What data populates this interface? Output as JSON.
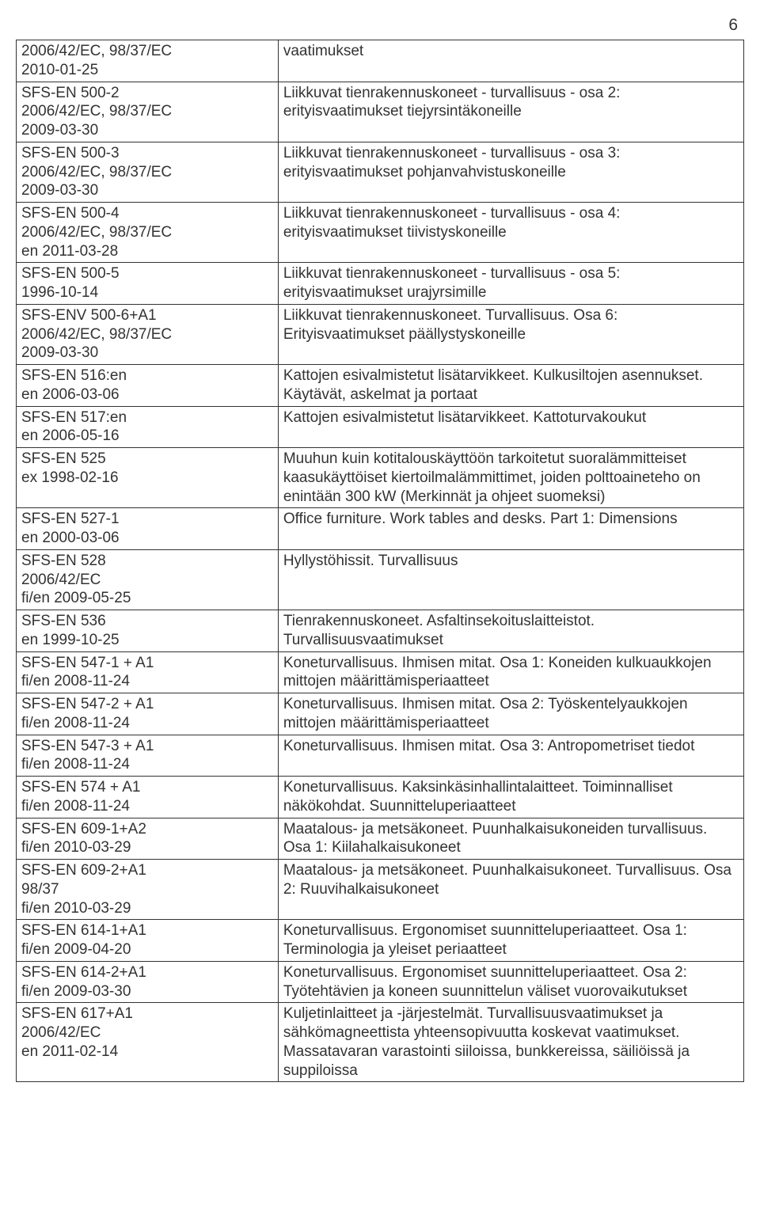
{
  "page_number": "6",
  "font_family": "Arial",
  "text_color": "#333333",
  "border_color": "#333333",
  "background_color": "#ffffff",
  "col_widths_pct": [
    36,
    64
  ],
  "rows": [
    {
      "left": "2006/42/EC, 98/37/EC\n2010-01-25",
      "right": "vaatimukset"
    },
    {
      "left": "SFS-EN 500-2\n2006/42/EC, 98/37/EC\n2009-03-30",
      "right": "Liikkuvat tienrakennuskoneet - turvallisuus - osa 2: erityisvaatimukset tiejyrsintäkoneille"
    },
    {
      "left": "SFS-EN 500-3\n2006/42/EC, 98/37/EC\n2009-03-30",
      "right": "Liikkuvat tienrakennuskoneet - turvallisuus - osa 3: erityisvaatimukset pohjanvahvistuskoneille"
    },
    {
      "left": "SFS-EN 500-4\n2006/42/EC, 98/37/EC\nen 2011-03-28",
      "right": "Liikkuvat tienrakennuskoneet - turvallisuus - osa 4: erityisvaatimukset tiivistyskoneille"
    },
    {
      "left": "SFS-EN 500-5\n1996-10-14",
      "right": "Liikkuvat tienrakennuskoneet - turvallisuus - osa 5: erityisvaatimukset urajyrsimille"
    },
    {
      "left": "SFS-ENV 500-6+A1\n2006/42/EC, 98/37/EC\n2009-03-30",
      "right": "Liikkuvat tienrakennuskoneet. Turvallisuus. Osa 6: Erityisvaatimukset päällystyskoneille"
    },
    {
      "left": "SFS-EN 516:en\nen 2006-03-06",
      "right": "Kattojen esivalmistetut lisätarvikkeet. Kulkusiltojen asennukset. Käytävät, askelmat ja portaat"
    },
    {
      "left": "SFS-EN 517:en\nen 2006-05-16",
      "right": "Kattojen esivalmistetut lisätarvikkeet. Kattoturvakoukut"
    },
    {
      "left": "SFS-EN 525\nex 1998-02-16",
      "right": "Muuhun kuin kotitalouskäyttöön tarkoitetut suoralämmitteiset kaasukäyttöiset kiertoilmalämmittimet, joiden polttoaineteho on enintään 300 kW (Merkinnät ja ohjeet suomeksi)"
    },
    {
      "left": "SFS-EN 527-1\nen 2000-03-06",
      "right": "Office furniture. Work tables and desks. Part 1: Dimensions"
    },
    {
      "left": "SFS-EN 528\n2006/42/EC\nfi/en 2009-05-25",
      "right": "Hyllystöhissit. Turvallisuus"
    },
    {
      "left": "SFS-EN 536\nen 1999-10-25",
      "right": "Tienrakennuskoneet. Asfaltinsekoituslaitteistot. Turvallisuusvaatimukset"
    },
    {
      "left": "SFS-EN 547-1 + A1\nfi/en 2008-11-24",
      "right": "Koneturvallisuus. Ihmisen mitat. Osa 1: Koneiden kulkuaukkojen mittojen määrittämisperiaatteet"
    },
    {
      "left": "SFS-EN 547-2 + A1\nfi/en 2008-11-24",
      "right": "Koneturvallisuus. Ihmisen mitat. Osa 2: Työskentelyaukkojen mittojen määrittämisperiaatteet"
    },
    {
      "left": "SFS-EN 547-3 + A1\nfi/en 2008-11-24",
      "right": "Koneturvallisuus. Ihmisen mitat. Osa 3: Antropometriset tiedot"
    },
    {
      "left": "SFS-EN 574 + A1\nfi/en 2008-11-24",
      "right": "Koneturvallisuus. Kaksinkäsinhallintalaitteet. Toiminnalliset näkökohdat. Suunnitteluperiaatteet"
    },
    {
      "left": "SFS-EN 609-1+A2\n fi/en 2010-03-29",
      "right": "Maatalous- ja metsäkoneet. Puunhalkaisukoneiden turvallisuus. Osa 1: Kiilahalkaisukoneet"
    },
    {
      "left": "SFS-EN 609-2+A1\n98/37\n fi/en 2010-03-29",
      "right": "Maatalous- ja metsäkoneet. Puunhalkaisukoneet. Turvallisuus. Osa 2: Ruuvihalkaisukoneet"
    },
    {
      "left": "SFS-EN 614-1+A1\nfi/en 2009-04-20",
      "right": "Koneturvallisuus. Ergonomiset suunnitteluperiaatteet. Osa 1: Terminologia ja yleiset periaatteet"
    },
    {
      "left": "SFS-EN 614-2+A1\nfi/en 2009-03-30",
      "right": "Koneturvallisuus. Ergonomiset suunnitteluperiaatteet. Osa 2: Työtehtävien ja koneen suunnittelun väliset vuorovaikutukset"
    },
    {
      "left": "SFS-EN 617+A1\n2006/42/EC\nen 2011-02-14",
      "right": "Kuljetinlaitteet ja -järjestelmät. Turvallisuusvaatimukset ja sähkömagneettista yhteensopivuutta koskevat vaatimukset. Massatavaran varastointi siiloissa, bunkkereissa, säiliöissä ja suppiloissa"
    }
  ]
}
